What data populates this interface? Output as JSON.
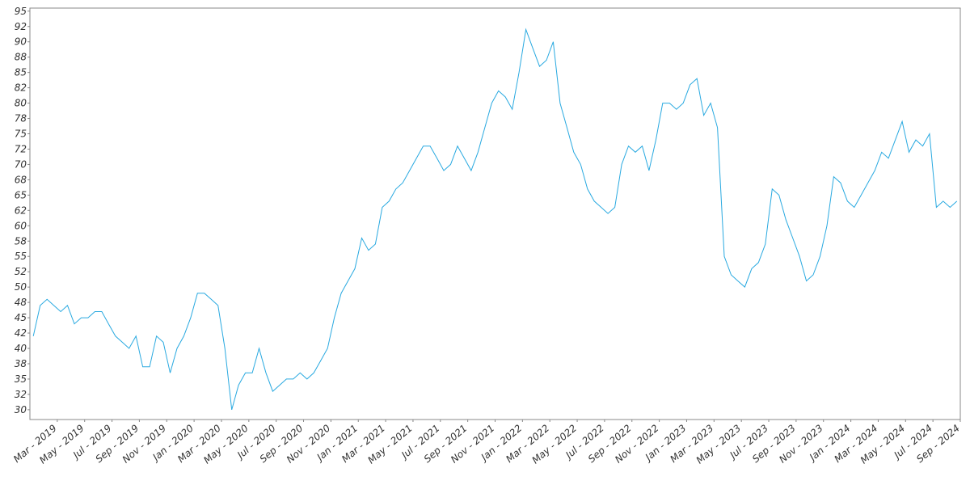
{
  "chart_data": {
    "type": "line",
    "color": "#29a9e0",
    "x": [
      "2019-01",
      "2019-01",
      "2019-02",
      "2019-02",
      "2019-03",
      "2019-03",
      "2019-04",
      "2019-04",
      "2019-05",
      "2019-05",
      "2019-06",
      "2019-06",
      "2019-07",
      "2019-07",
      "2019-08",
      "2019-08",
      "2019-09",
      "2019-09",
      "2019-10",
      "2019-10",
      "2019-11",
      "2019-11",
      "2019-12",
      "2019-12",
      "2020-01",
      "2020-01",
      "2020-02",
      "2020-02",
      "2020-03",
      "2020-03",
      "2020-04",
      "2020-04",
      "2020-05",
      "2020-05",
      "2020-06",
      "2020-06",
      "2020-07",
      "2020-07",
      "2020-08",
      "2020-08",
      "2020-09",
      "2020-09",
      "2020-10",
      "2020-10",
      "2020-11",
      "2020-11",
      "2020-12",
      "2020-12",
      "2021-01",
      "2021-01",
      "2021-02",
      "2021-02",
      "2021-03",
      "2021-03",
      "2021-04",
      "2021-04",
      "2021-05",
      "2021-05",
      "2021-06",
      "2021-06",
      "2021-07",
      "2021-07",
      "2021-08",
      "2021-08",
      "2021-09",
      "2021-09",
      "2021-10",
      "2021-10",
      "2021-11",
      "2021-11",
      "2021-12",
      "2021-12",
      "2022-01",
      "2022-01",
      "2022-02",
      "2022-02",
      "2022-03",
      "2022-03",
      "2022-04",
      "2022-04",
      "2022-05",
      "2022-05",
      "2022-06",
      "2022-06",
      "2022-07",
      "2022-07",
      "2022-08",
      "2022-08",
      "2022-09",
      "2022-09",
      "2022-10",
      "2022-10",
      "2022-11",
      "2022-11",
      "2022-12",
      "2022-12",
      "2023-01",
      "2023-01",
      "2023-02",
      "2023-02",
      "2023-03",
      "2023-03",
      "2023-04",
      "2023-04",
      "2023-05",
      "2023-05",
      "2023-06",
      "2023-06",
      "2023-07",
      "2023-07",
      "2023-08",
      "2023-08",
      "2023-09",
      "2023-09",
      "2023-10",
      "2023-10",
      "2023-11",
      "2023-11",
      "2023-12",
      "2023-12",
      "2024-01",
      "2024-01",
      "2024-02",
      "2024-02",
      "2024-03",
      "2024-03",
      "2024-04",
      "2024-04",
      "2024-05",
      "2024-05",
      "2024-06",
      "2024-06",
      "2024-07",
      "2024-07",
      "2024-08",
      "2024-08"
    ],
    "values": [
      42,
      47,
      48,
      47,
      46,
      47,
      44,
      45,
      45,
      46,
      46,
      44,
      42,
      41,
      40,
      42,
      37,
      37,
      42,
      41,
      36,
      40,
      42,
      45,
      49,
      49,
      48,
      47,
      40,
      30,
      34,
      36,
      36,
      40,
      36,
      33,
      34,
      35,
      35,
      36,
      35,
      36,
      38,
      40,
      45,
      49,
      51,
      53,
      58,
      56,
      57,
      63,
      64,
      66,
      67,
      69,
      71,
      73,
      73,
      71,
      69,
      70,
      73,
      71,
      69,
      72,
      76,
      80,
      82,
      81,
      79,
      85,
      92,
      89,
      86,
      87,
      90,
      80,
      76,
      72,
      70,
      66,
      64,
      63,
      62,
      63,
      70,
      73,
      72,
      73,
      69,
      74,
      80,
      80,
      79,
      80,
      83,
      84,
      78,
      80,
      76,
      55,
      52,
      51,
      50,
      53,
      54,
      57,
      66,
      65,
      61,
      58,
      55,
      51,
      52,
      55,
      60,
      68,
      67,
      64,
      63,
      65,
      67,
      69,
      72,
      71,
      74,
      77,
      72,
      74,
      73,
      75,
      63,
      64,
      63,
      64
    ],
    "xlim": [
      "2019-01",
      "2024-09"
    ],
    "xticks": [
      {
        "value": "2019-03",
        "label": "Mar - 2019"
      },
      {
        "value": "2019-05",
        "label": "May - 2019"
      },
      {
        "value": "2019-07",
        "label": "Jul - 2019"
      },
      {
        "value": "2019-09",
        "label": "Sep - 2019"
      },
      {
        "value": "2019-11",
        "label": "Nov - 2019"
      },
      {
        "value": "2020-01",
        "label": "Jan - 2020"
      },
      {
        "value": "2020-03",
        "label": "Mar - 2020"
      },
      {
        "value": "2020-05",
        "label": "May - 2020"
      },
      {
        "value": "2020-07",
        "label": "Jul - 2020"
      },
      {
        "value": "2020-09",
        "label": "Sep - 2020"
      },
      {
        "value": "2020-11",
        "label": "Nov - 2020"
      },
      {
        "value": "2021-01",
        "label": "Jan - 2021"
      },
      {
        "value": "2021-03",
        "label": "Mar - 2021"
      },
      {
        "value": "2021-05",
        "label": "May - 2021"
      },
      {
        "value": "2021-07",
        "label": "Jul - 2021"
      },
      {
        "value": "2021-09",
        "label": "Sep - 2021"
      },
      {
        "value": "2021-11",
        "label": "Nov - 2021"
      },
      {
        "value": "2022-01",
        "label": "Jan - 2022"
      },
      {
        "value": "2022-03",
        "label": "Mar - 2022"
      },
      {
        "value": "2022-05",
        "label": "May - 2022"
      },
      {
        "value": "2022-07",
        "label": "Jul - 2022"
      },
      {
        "value": "2022-09",
        "label": "Sep - 2022"
      },
      {
        "value": "2022-11",
        "label": "Nov - 2022"
      },
      {
        "value": "2023-01",
        "label": "Jan - 2023"
      },
      {
        "value": "2023-03",
        "label": "Mar - 2023"
      },
      {
        "value": "2023-05",
        "label": "May - 2023"
      },
      {
        "value": "2023-07",
        "label": "Jul - 2023"
      },
      {
        "value": "2023-09",
        "label": "Sep - 2023"
      },
      {
        "value": "2023-11",
        "label": "Nov - 2023"
      },
      {
        "value": "2024-01",
        "label": "Jan - 2024"
      },
      {
        "value": "2024-03",
        "label": "Mar - 2024"
      },
      {
        "value": "2024-05",
        "label": "May - 2024"
      },
      {
        "value": "2024-07",
        "label": "Jul - 2024"
      },
      {
        "value": "2024-09",
        "label": "Sep - 2024"
      }
    ],
    "ylim": [
      28.4,
      95.5
    ],
    "yticks": [
      30,
      {
        "value": 32.5,
        "label": "32"
      },
      35,
      {
        "value": 37.5,
        "label": "38"
      },
      40,
      {
        "value": 42.5,
        "label": "42"
      },
      45,
      {
        "value": 47.5,
        "label": "48"
      },
      50,
      {
        "value": 52.5,
        "label": "52"
      },
      55,
      {
        "value": 57.5,
        "label": "58"
      },
      60,
      {
        "value": 62.5,
        "label": "62"
      },
      65,
      {
        "value": 67.5,
        "label": "68"
      },
      70,
      {
        "value": 72.5,
        "label": "72"
      },
      75,
      {
        "value": 77.5,
        "label": "78"
      },
      80,
      {
        "value": 82.5,
        "label": "82"
      },
      85,
      {
        "value": 87.5,
        "label": "88"
      },
      90,
      {
        "value": 92.5,
        "label": "92"
      },
      95
    ]
  }
}
